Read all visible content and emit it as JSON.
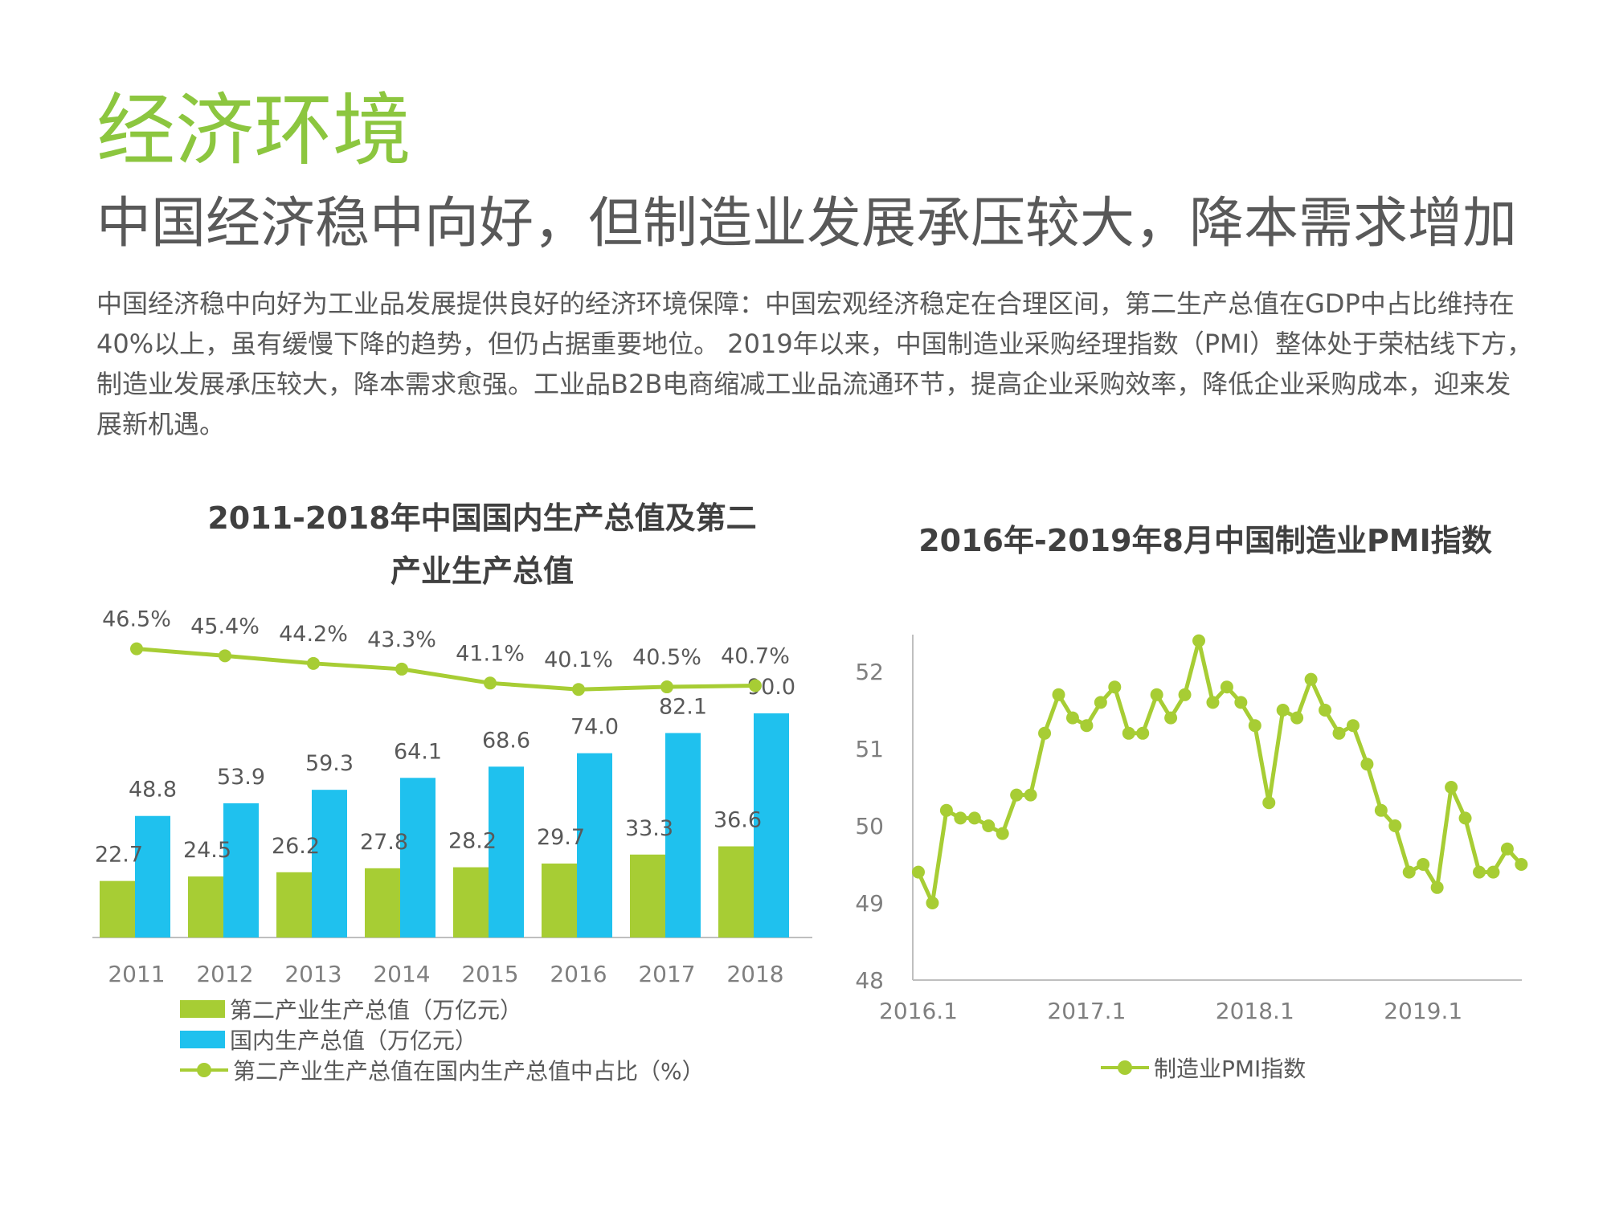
{
  "page": {
    "section_title": "经济环境",
    "subtitle": "中国经济稳中向好，但制造业发展承压较大，降本需求增加",
    "intro": "中国经济稳中向好为工业品发展提供良好的经济环境保障：中国宏观经济稳定在合理区间，第二生产总值在GDP中占比维持在40%以上，虽有缓慢下降的趋势，但仍占据重要地位。 2019年以来，中国制造业采购经理指数（PMI）整体处于荣枯线下方，制造业发展承压较大，降本需求愈强。工业品B2B电商缩减工业品流通环节，提高企业采购效率，降低企业采购成本，迎来发展新机遇。"
  },
  "colors": {
    "accent": "#8cc63f",
    "green_series": "#a7cd34",
    "blue_series": "#1fc1ee",
    "text": "#595959",
    "axis": "#bfbfbf"
  },
  "chart_data": [
    {
      "type": "bar",
      "title": "2011-2018年中国国内生产总值及第二产业生产总值",
      "title_line1": "2011-2018年中国国内生产总值及第二",
      "title_line2": "产业生产总值",
      "categories": [
        "2011",
        "2012",
        "2013",
        "2014",
        "2015",
        "2016",
        "2017",
        "2018"
      ],
      "series": [
        {
          "name": "第二产业生产总值（万亿元）",
          "kind": "bar",
          "color": "#a7cd34",
          "values": [
            22.7,
            24.5,
            26.2,
            27.8,
            28.2,
            29.7,
            33.3,
            36.6
          ],
          "labels": [
            "22.7",
            "24.5",
            "26.2",
            "27.8",
            "28.2",
            "29.7",
            "33.3",
            "36.6"
          ]
        },
        {
          "name": "国内生产总值（万亿元）",
          "kind": "bar",
          "color": "#1fc1ee",
          "values": [
            48.8,
            53.9,
            59.3,
            64.1,
            68.6,
            74.0,
            82.1,
            90.0
          ],
          "labels": [
            "48.8",
            "53.9",
            "59.3",
            "64.1",
            "68.6",
            "74.0",
            "82.1",
            "90.0"
          ]
        },
        {
          "name": "第二产业生产总值在国内生产总值中占比（%）",
          "kind": "line",
          "color": "#a7cd34",
          "values": [
            46.5,
            45.4,
            44.2,
            43.3,
            41.1,
            40.1,
            40.5,
            40.7
          ],
          "labels": [
            "46.5%",
            "45.4%",
            "44.2%",
            "43.3%",
            "41.1%",
            "40.1%",
            "40.5%",
            "40.7%"
          ]
        }
      ],
      "ylim": [
        0,
        100
      ],
      "legend_position": "bottom"
    },
    {
      "type": "line",
      "title": "2016年-2019年8月中国制造业PMI指数",
      "x_start": "2016-01",
      "x_end": "2019-08",
      "x_tick_labels": [
        "2016.1",
        "2017.1",
        "2018.1",
        "2019.1"
      ],
      "y_ticks": [
        48,
        49,
        50,
        51,
        52
      ],
      "ylim": [
        48,
        52.6
      ],
      "series": [
        {
          "name": "制造业PMI指数",
          "color": "#a7cd34",
          "values": [
            49.4,
            49.0,
            50.2,
            50.1,
            50.1,
            50.0,
            49.9,
            50.4,
            50.4,
            51.2,
            51.7,
            51.4,
            51.3,
            51.6,
            51.8,
            51.2,
            51.2,
            51.7,
            51.4,
            51.7,
            52.4,
            51.6,
            51.8,
            51.6,
            51.3,
            50.3,
            51.5,
            51.4,
            51.9,
            51.5,
            51.2,
            51.3,
            50.8,
            50.2,
            50.0,
            49.4,
            49.5,
            49.2,
            50.5,
            50.1,
            49.4,
            49.4,
            49.7,
            49.5
          ]
        }
      ],
      "legend_position": "bottom"
    }
  ]
}
